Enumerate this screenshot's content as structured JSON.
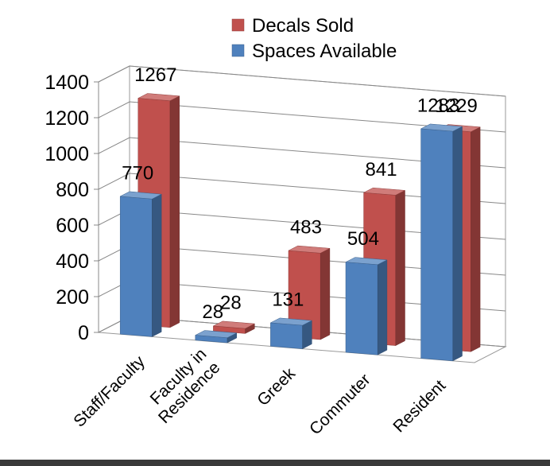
{
  "chart_data": {
    "type": "bar",
    "categories": [
      "Staff/Faculty",
      "Faculty in Residence",
      "Greek",
      "Commuter",
      "Resident"
    ],
    "category_lines": [
      [
        "Staff/Faculty"
      ],
      [
        "Faculty in",
        "Residence"
      ],
      [
        "Greek"
      ],
      [
        "Commuter"
      ],
      [
        "Resident"
      ]
    ],
    "series": [
      {
        "name": "Decals Sold",
        "color": "#c0504d",
        "values": [
          1267,
          28,
          483,
          841,
          1229
        ]
      },
      {
        "name": "Spaces Available",
        "color": "#4f81bd",
        "values": [
          770,
          28,
          131,
          504,
          1283
        ]
      }
    ],
    "ylim": [
      0,
      1400
    ],
    "yticks": [
      "0",
      "200",
      "400",
      "600",
      "800",
      "1000",
      "1200",
      "1400"
    ],
    "grid": true,
    "legend_position": "top-right",
    "title": "",
    "xlabel": "",
    "ylabel": ""
  }
}
